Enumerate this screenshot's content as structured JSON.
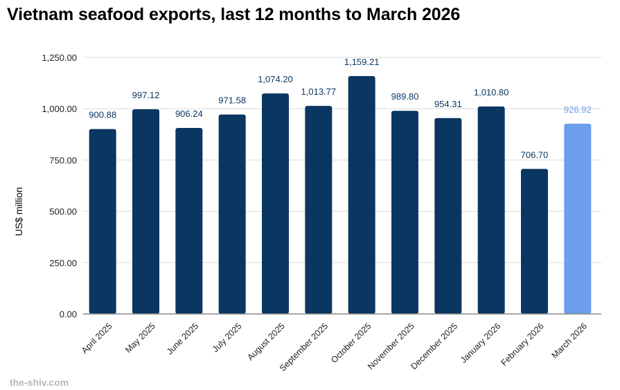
{
  "title": "Vietnam seafood exports, last 12 months to March 2026",
  "watermark": "the-shiv.com",
  "colors": {
    "bar": "#0a3761",
    "highlight_bar": "#6d9eeb",
    "label": "#0a3761",
    "highlight_label": "#6d9eeb",
    "grid": "#d9d9d9",
    "axis": "#888888",
    "tick_text": "#222222"
  },
  "chart_data": {
    "type": "bar",
    "title": "Vietnam seafood exports, last 12 months to March 2026",
    "xlabel": "",
    "ylabel": "US$ million",
    "ylim": [
      0,
      1250
    ],
    "yticks": [
      0,
      250,
      500,
      750,
      1000,
      1250
    ],
    "ytick_labels": [
      "0.00",
      "250.00",
      "500.00",
      "750.00",
      "1,000.00",
      "1,250.00"
    ],
    "grid": true,
    "legend": "none",
    "categories": [
      "April 2025",
      "May 2025",
      "June 2025",
      "July 2025",
      "August 2025",
      "September 2025",
      "October 2025",
      "November 2025",
      "December 2025",
      "January 2026",
      "February 2026",
      "March 2026"
    ],
    "values": [
      900.88,
      997.12,
      906.24,
      971.58,
      1074.2,
      1013.77,
      1159.21,
      989.8,
      954.31,
      1010.8,
      706.7,
      926.92
    ],
    "value_labels": [
      "900.88",
      "997.12",
      "906.24",
      "971.58",
      "1,074.20",
      "1,013.77",
      "1,159.21",
      "989.80",
      "954.31",
      "1,010.80",
      "706.70",
      "926.92"
    ],
    "highlighted": [
      false,
      false,
      false,
      false,
      false,
      false,
      false,
      false,
      false,
      false,
      false,
      true
    ]
  }
}
